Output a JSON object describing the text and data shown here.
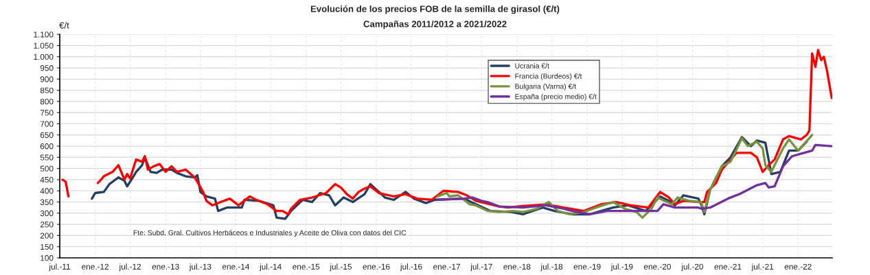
{
  "chart_data": {
    "type": "line",
    "title": "Evolución de los precios FOB de la semilla de girasol (€/t)",
    "subtitle": "Campañas 2011/2012 a 2021/2022",
    "ylabel": "€/t",
    "annotations": [
      "Fte: Subd. Gral. Cultivos Herbáceos e Industriales y Aceite de Oliva con datos del CIC"
    ],
    "xlim": [
      "2011-07-01",
      "2022-06-28"
    ],
    "xticks": [
      {
        "value": "2011-07-01",
        "label": "jul.-11"
      },
      {
        "value": "2012-01-01",
        "label": "ene.-12"
      },
      {
        "value": "2012-07-01",
        "label": "jul.-12"
      },
      {
        "value": "2013-01-01",
        "label": "ene.-13"
      },
      {
        "value": "2013-07-01",
        "label": "jul.-13"
      },
      {
        "value": "2014-01-01",
        "label": "ene.-14"
      },
      {
        "value": "2014-07-01",
        "label": "jul.-14"
      },
      {
        "value": "2015-01-01",
        "label": "ene.-15"
      },
      {
        "value": "2015-07-01",
        "label": "jul.-15"
      },
      {
        "value": "2016-01-01",
        "label": "ene.-16"
      },
      {
        "value": "2016-07-01",
        "label": "jul.-16"
      },
      {
        "value": "2017-01-01",
        "label": "ene.-17"
      },
      {
        "value": "2017-07-01",
        "label": "jul.-17"
      },
      {
        "value": "2018-01-01",
        "label": "ene.-18"
      },
      {
        "value": "2018-07-01",
        "label": "jul.-18"
      },
      {
        "value": "2019-01-01",
        "label": "ene.-19"
      },
      {
        "value": "2019-07-01",
        "label": "jul.-19"
      },
      {
        "value": "2020-01-01",
        "label": "ene.-20"
      },
      {
        "value": "2020-07-01",
        "label": "jul.-20"
      },
      {
        "value": "2021-01-01",
        "label": "ene.-21"
      },
      {
        "value": "2021-07-01",
        "label": "jul.-21"
      },
      {
        "value": "2022-01-01",
        "label": "ene.-22"
      }
    ],
    "ylim": [
      100,
      1100
    ],
    "yticks": [
      100,
      150,
      200,
      250,
      300,
      350,
      400,
      450,
      500,
      550,
      600,
      650,
      700,
      750,
      800,
      850,
      900,
      950,
      {
        "value": 1000,
        "label": "1.000"
      },
      {
        "value": 1050,
        "label": "1.050"
      },
      {
        "value": 1100,
        "label": "1.100"
      }
    ],
    "grid": true,
    "legend": "top",
    "line_style": "solid",
    "series": [
      {
        "name": "Ucrania €/t",
        "color": "#243f60",
        "x": [
          "2011-12-15",
          "2012-01-01",
          "2012-02-15",
          "2012-03-15",
          "2012-05-01",
          "2012-06-01",
          "2012-06-15",
          "2012-07-15",
          "2012-08-01",
          "2012-09-01",
          "2012-09-15",
          "2012-10-15",
          "2012-11-15",
          "2012-12-15",
          "2013-02-01",
          "2013-03-01",
          "2013-04-15",
          "2013-06-01",
          "2013-06-15",
          "2013-07-01",
          "2013-08-01",
          "2013-09-15",
          "2013-10-01",
          "2013-11-15",
          "2014-01-01",
          "2014-02-01",
          "2014-02-15",
          "2014-05-01",
          "2014-07-15",
          "2014-08-01",
          "2014-09-15",
          "2014-10-15",
          "2014-12-15",
          "2015-02-01",
          "2015-03-15",
          "2015-05-01",
          "2015-06-01",
          "2015-07-15",
          "2015-09-01",
          "2015-11-01",
          "2015-12-01",
          "2016-01-15",
          "2016-02-15",
          "2016-04-01",
          "2016-06-01",
          "2016-07-15",
          "2016-09-15",
          "2016-11-01",
          "2017-04-01",
          "2017-08-15",
          "2017-12-01",
          "2018-02-01",
          "2018-05-15",
          "2018-07-15",
          "2018-10-15",
          "2019-01-15",
          "2019-05-15",
          "2019-08-01",
          "2019-11-01",
          "2020-01-15",
          "2020-03-01",
          "2020-04-01",
          "2020-05-15",
          "2020-08-01",
          "2020-08-15",
          "2020-09-01",
          "2020-10-01",
          "2020-12-01",
          "2021-01-15",
          "2021-03-15",
          "2021-05-01",
          "2021-06-01",
          "2021-07-15",
          "2021-08-15",
          "2021-10-01",
          "2021-11-15",
          "2022-01-01",
          "2022-02-15"
        ],
        "values": [
          365,
          390,
          395,
          430,
          460,
          445,
          420,
          460,
          485,
          515,
          550,
          485,
          480,
          495,
          495,
          480,
          465,
          460,
          470,
          395,
          375,
          365,
          310,
          325,
          325,
          325,
          360,
          355,
          335,
          280,
          275,
          310,
          360,
          350,
          390,
          380,
          335,
          370,
          350,
          385,
          430,
          395,
          370,
          360,
          395,
          365,
          345,
          360,
          365,
          310,
          305,
          295,
          325,
          310,
          295,
          295,
          325,
          335,
          310,
          375,
          355,
          335,
          380,
          365,
          340,
          295,
          405,
          510,
          550,
          640,
          600,
          625,
          615,
          475,
          485,
          580,
          580,
          620
        ]
      },
      {
        "name": "Francia (Burdeos) €/t",
        "color": "#ff0000",
        "x": [
          "2011-07-15",
          "2011-08-01",
          "2011-08-15",
          "2011-10-15",
          "2012-01-15",
          "2012-02-01",
          "2012-02-15",
          "2012-04-01",
          "2012-05-01",
          "2012-06-01",
          "2012-06-15",
          "2012-07-01",
          "2012-07-15",
          "2012-08-01",
          "2012-09-01",
          "2012-09-15",
          "2012-10-01",
          "2012-11-01",
          "2012-12-01",
          "2013-01-01",
          "2013-02-01",
          "2013-03-01",
          "2013-04-15",
          "2013-06-01",
          "2013-06-15",
          "2013-07-15",
          "2013-08-01",
          "2013-09-01",
          "2013-10-15",
          "2013-12-01",
          "2014-01-15",
          "2014-03-15",
          "2014-04-15",
          "2014-06-15",
          "2014-08-01",
          "2014-09-01",
          "2014-10-01",
          "2014-10-15",
          "2014-12-01",
          "2015-02-01",
          "2015-04-15",
          "2015-06-01",
          "2015-07-01",
          "2015-08-01",
          "2015-09-01",
          "2015-10-01",
          "2015-11-01",
          "2015-12-01",
          "2016-01-15",
          "2016-04-01",
          "2016-06-01",
          "2016-08-01",
          "2016-10-15",
          "2016-12-15",
          "2017-03-01",
          "2017-04-15",
          "2017-06-01",
          "2017-10-01",
          "2017-11-15",
          "2018-02-01",
          "2018-06-01",
          "2018-09-01",
          "2018-12-15",
          "2019-03-15",
          "2019-06-01",
          "2019-08-15",
          "2019-11-15",
          "2020-01-15",
          "2020-03-01",
          "2020-04-01",
          "2020-05-15",
          "2020-08-01",
          "2020-09-01",
          "2020-09-15",
          "2020-11-01",
          "2020-12-01",
          "2021-01-15",
          "2021-02-15",
          "2021-05-01",
          "2021-06-01",
          "2021-07-01",
          "2021-08-01",
          "2021-09-01",
          "2021-10-15",
          "2021-11-15",
          "2022-01-15",
          "2022-02-15",
          "2022-03-01",
          "2022-03-15",
          "2022-04-01",
          "2022-04-15",
          "2022-05-01",
          "2022-05-15",
          "2022-06-01",
          "2022-06-25"
        ],
        "values": [
          450,
          440,
          375,
          null,
          435,
          450,
          465,
          485,
          515,
          450,
          475,
          455,
          495,
          540,
          530,
          555,
          495,
          510,
          520,
          485,
          510,
          485,
          495,
          460,
          440,
          395,
          355,
          335,
          350,
          365,
          335,
          375,
          360,
          340,
          310,
          310,
          295,
          320,
          360,
          370,
          390,
          430,
          415,
          385,
          365,
          395,
          410,
          420,
          390,
          375,
          385,
          365,
          360,
          400,
          395,
          380,
          355,
          330,
          325,
          332,
          340,
          325,
          310,
          340,
          350,
          335,
          325,
          395,
          370,
          340,
          355,
          350,
          350,
          395,
          435,
          495,
          540,
          570,
          570,
          550,
          485,
          515,
          540,
          630,
          645,
          630,
          650,
          670,
          1015,
          955,
          1030,
          985,
          1000,
          935,
          815
        ]
      },
      {
        "name": "Bulgaria (Varna) €/t",
        "color": "#77933c",
        "x": [
          "2016-11-15",
          "2017-01-01",
          "2017-01-15",
          "2017-03-01",
          "2017-05-01",
          "2017-06-01",
          "2017-08-01",
          "2017-10-01",
          "2017-12-15",
          "2018-02-01",
          "2018-04-15",
          "2018-06-15",
          "2018-08-01",
          "2018-10-01",
          "2018-12-15",
          "2019-02-15",
          "2019-05-15",
          "2019-07-15",
          "2019-09-15",
          "2019-10-15",
          "2019-12-01",
          "2020-01-01",
          "2020-03-15",
          "2020-04-15",
          "2020-06-15",
          "2020-08-15",
          "2020-09-01",
          "2020-10-01",
          "2020-12-01",
          "2021-01-15",
          "2021-03-15",
          "2021-04-15",
          "2021-06-01",
          "2021-07-01",
          "2021-07-15",
          "2021-08-15",
          "2021-10-15",
          "2021-11-15",
          "2022-01-01",
          "2022-03-15"
        ],
        "values": [
          375,
          390,
          375,
          380,
          340,
          335,
          310,
          305,
          310,
          305,
          320,
          350,
          310,
          295,
          305,
          325,
          350,
          320,
          305,
          280,
          320,
          370,
          340,
          370,
          355,
          350,
          305,
          405,
          510,
          530,
          635,
          600,
          620,
          590,
          515,
          485,
          590,
          630,
          580,
          650
        ]
      },
      {
        "name": "España (precio medio) €/t",
        "color": "#7030a0",
        "x": [
          "2016-11-15",
          "2017-04-01",
          "2017-05-15",
          "2017-07-01",
          "2017-08-01",
          "2017-10-01",
          "2018-02-01",
          "2018-06-01",
          "2018-09-01",
          "2018-10-15",
          "2019-01-15",
          "2019-04-15",
          "2019-08-15",
          "2020-01-01",
          "2020-02-01",
          "2020-04-01",
          "2020-08-01",
          "2020-08-15",
          "2020-10-01",
          "2021-01-01",
          "2021-03-01",
          "2021-06-01",
          "2021-07-15",
          "2021-08-01",
          "2021-09-01",
          "2021-10-15",
          "2021-12-01",
          "2022-02-01",
          "2022-03-15",
          "2022-04-01",
          "2022-06-25"
        ],
        "values": [
          360,
          365,
          370,
          355,
          350,
          330,
          325,
          335,
          320,
          310,
          295,
          310,
          310,
          310,
          340,
          325,
          325,
          320,
          325,
          365,
          385,
          425,
          435,
          415,
          420,
          510,
          555,
          570,
          580,
          605,
          600
        ]
      }
    ]
  }
}
